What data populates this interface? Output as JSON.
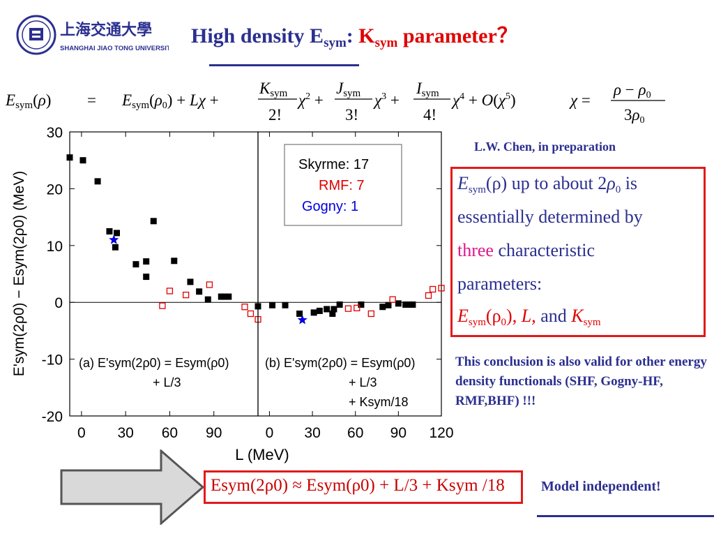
{
  "logo": {
    "cn": "上海交通大學",
    "en": "SHANGHAI JIAO TONG UNIVERSITY"
  },
  "title": {
    "part1": "High density E",
    "part1_sub": "sym",
    "colon": ":",
    "part2": "K",
    "part2_sub": "sym",
    "part3": "parameter？"
  },
  "formula": {
    "chi_def": "χ = (ρ − ρ0)/3ρ0"
  },
  "credit": "L.W. Chen, in preparation",
  "box": {
    "line1a": "E",
    "line1sub": "sym",
    "line1b": "(ρ)",
    "line1c": " up to about 2",
    "line1d": "ρ",
    "line1dsub": "0",
    "line1e": " is",
    "line2": "essentially determined by",
    "line3a": "three",
    "line3b": " characteristic",
    "line4": "parameters:",
    "line5a": "E",
    "line5sub": "sym",
    "line5b": "(ρ",
    "line5bsub": "0",
    "line5c": "),",
    "line5d": "L,",
    "line5e": " and ",
    "line5f": "K",
    "line5fsub": "sym"
  },
  "conclusion": "This conclusion is also valid for other energy density functionals (SHF, Gogny-HF, RMF,BHF) !!!",
  "approx": {
    "text": "Esym(2ρ0) ≈ Esym(ρ0) + L/3 + Ksym /18"
  },
  "model_independent": "Model independent!",
  "colors": {
    "title": "#2b2f8f",
    "red": "#e00000",
    "magenta": "#e0168c",
    "skyrme": "#000000",
    "rmf": "#e00000",
    "gogny": "#0000e0"
  },
  "chart_data": {
    "type": "scatter",
    "xlabel": "L (MeV)",
    "ylabel": "E'sym(2ρ0) − Esym(2ρ0) (MeV)",
    "ylim": [
      -20,
      30
    ],
    "yticks": [
      30,
      20,
      10,
      0,
      -10,
      -20
    ],
    "legend": {
      "title": "",
      "entries": [
        "Skyrme: 17",
        "RMF:  7",
        "Gogny: 1"
      ]
    },
    "panels": [
      {
        "label": "(a) E'sym(2ρ0) = Esym(ρ0) + L/3",
        "xlim": [
          -8,
          120
        ],
        "xticks": [
          0,
          30,
          60,
          90
        ],
        "series": [
          {
            "name": "Skyrme",
            "marker": "filled-square",
            "points": [
              [
                -8,
                25.5
              ],
              [
                1,
                25
              ],
              [
                11,
                21.3
              ],
              [
                19,
                12.5
              ],
              [
                24,
                12.2
              ],
              [
                23,
                9.7
              ],
              [
                37,
                6.7
              ],
              [
                44,
                7.2
              ],
              [
                44,
                4.5
              ],
              [
                49,
                14.3
              ],
              [
                63,
                7.3
              ],
              [
                74,
                3.6
              ],
              [
                80,
                1.9
              ],
              [
                86,
                0.5
              ],
              [
                95,
                1
              ],
              [
                97,
                1
              ],
              [
                100,
                1
              ]
            ]
          },
          {
            "name": "RMF",
            "marker": "open-square",
            "points": [
              [
                55,
                -0.6
              ],
              [
                60,
                2
              ],
              [
                71,
                1.3
              ],
              [
                87,
                3.1
              ],
              [
                111,
                -0.8
              ],
              [
                115,
                -2
              ],
              [
                120,
                -3
              ]
            ]
          },
          {
            "name": "Gogny",
            "marker": "star",
            "points": [
              [
                22,
                11
              ]
            ]
          }
        ]
      },
      {
        "label": "(b) E'sym(2ρ0) = Esym(ρ0) + L/3 + Ksym/18",
        "xlim": [
          -8,
          120
        ],
        "xticks": [
          0,
          30,
          60,
          90,
          120
        ],
        "series": [
          {
            "name": "Skyrme",
            "marker": "filled-square",
            "points": [
              [
                -8,
                -0.7
              ],
              [
                2,
                -0.5
              ],
              [
                11,
                -0.5
              ],
              [
                21,
                -2
              ],
              [
                31,
                -1.8
              ],
              [
                35,
                -1.5
              ],
              [
                40,
                -1.2
              ],
              [
                44,
                -2
              ],
              [
                45,
                -1.2
              ],
              [
                49,
                -0.4
              ],
              [
                64,
                -0.4
              ],
              [
                79,
                -0.8
              ],
              [
                83,
                -0.5
              ],
              [
                90,
                -0.2
              ],
              [
                95,
                -0.4
              ],
              [
                98,
                -0.4
              ],
              [
                100,
                -0.4
              ]
            ]
          },
          {
            "name": "RMF",
            "marker": "open-square",
            "points": [
              [
                55,
                -1.1
              ],
              [
                61,
                -1
              ],
              [
                71,
                -2
              ],
              [
                86,
                0.5
              ],
              [
                111,
                1.2
              ],
              [
                114,
                2.3
              ],
              [
                120,
                2.5
              ]
            ]
          },
          {
            "name": "Gogny",
            "marker": "star",
            "points": [
              [
                23,
                -3.1
              ]
            ]
          }
        ]
      }
    ]
  }
}
